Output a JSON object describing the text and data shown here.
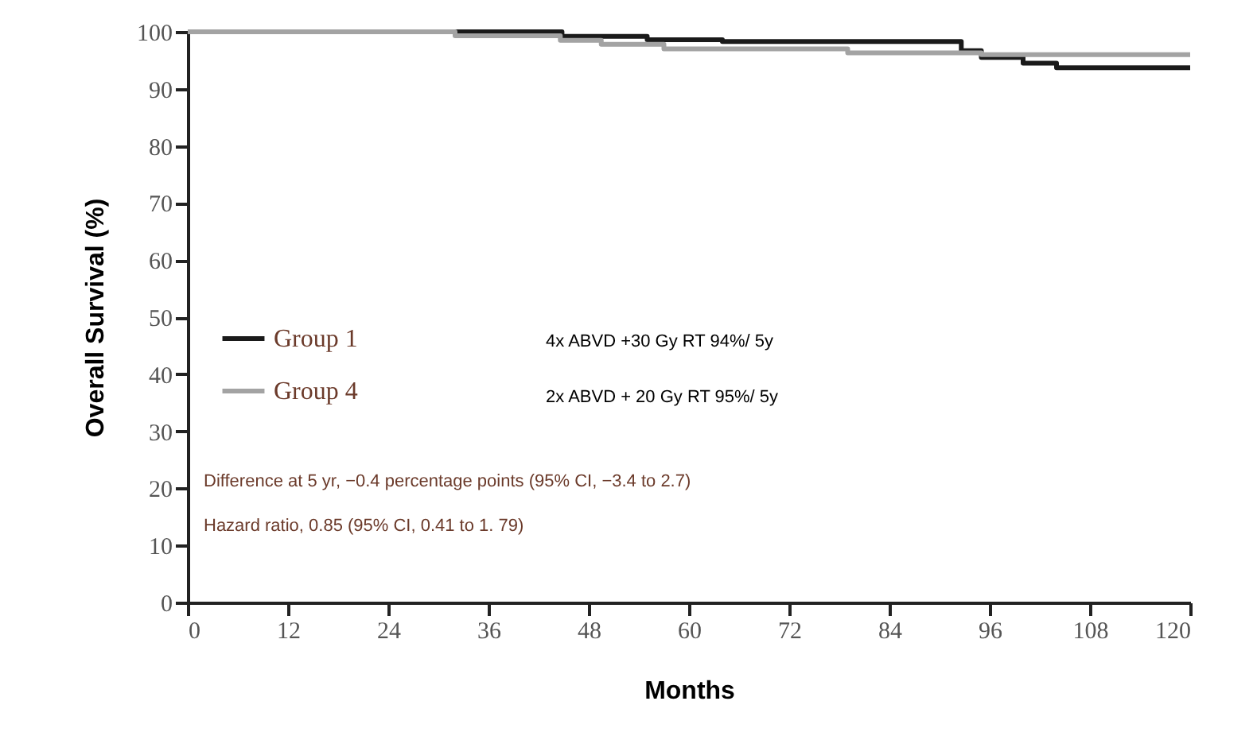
{
  "chart_data": {
    "type": "step",
    "xlabel": "Months",
    "ylabel": "Overall Survival (%)",
    "series": [
      {
        "name": "Group 1",
        "color": "#1a1a1a",
        "x": [
          0,
          44.8,
          55,
          64,
          92.6,
          95,
          100,
          104,
          120
        ],
        "values": [
          100,
          99.2,
          98.6,
          98.3,
          96.7,
          95.5,
          94.5,
          93.7,
          93.7
        ]
      },
      {
        "name": "Group 4",
        "color": "#a3a3a3",
        "x": [
          0,
          32,
          44.6,
          49.5,
          57,
          79,
          95,
          120
        ],
        "values": [
          100,
          99.3,
          98.5,
          97.8,
          97,
          96.3,
          96,
          96
        ]
      }
    ],
    "xlim": [
      0,
      120
    ],
    "xticks": [
      0,
      12,
      24,
      36,
      48,
      60,
      72,
      84,
      96,
      108,
      120
    ],
    "ylim": [
      0,
      100
    ],
    "yticks": [
      0,
      10,
      20,
      30,
      40,
      50,
      60,
      70,
      80,
      90,
      100
    ],
    "grid": false,
    "legend": "left",
    "marker": "none",
    "line_style": "solid",
    "annotations": [
      "4x ABVD +30 Gy RT   94%/ 5y",
      "2x ABVD + 20 Gy RT  95%/ 5y",
      "Difference at 5 yr, −0.4 percentage points (95% CI, −3.4 to 2.7)",
      "Hazard ratio, 0.85 (95% CI, 0.41 to 1. 79)"
    ]
  }
}
